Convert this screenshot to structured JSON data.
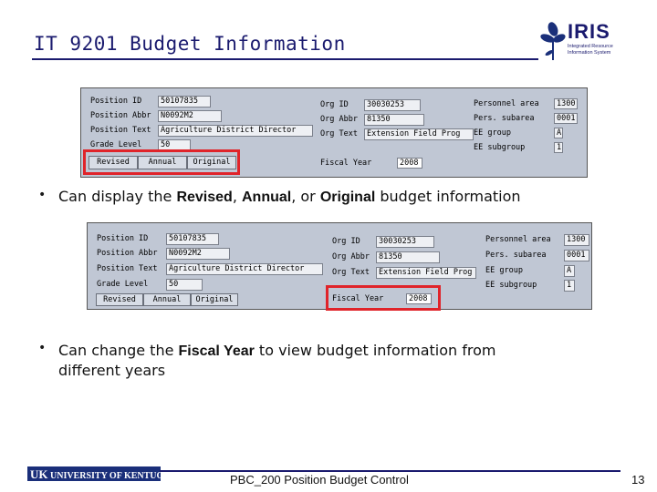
{
  "slide": {
    "title": "IT 9201 Budget Information",
    "logo": {
      "name": "IRIS",
      "subtitle": "Integrated Resource Information System"
    },
    "footer": {
      "org": "UNIVERSITY OF KENTUCKY",
      "uk_mark": "UK",
      "course": "PBC_200 Position Budget Control",
      "page": "13"
    }
  },
  "screen1": {
    "labels": {
      "position_id": "Position ID",
      "position_abbr": "Position Abbr",
      "position_text": "Position Text",
      "grade_level": "Grade Level",
      "org_id": "Org ID",
      "org_abbr": "Org Abbr",
      "org_text": "Org Text",
      "fiscal_year": "Fiscal Year",
      "personnel_area": "Personnel area",
      "pers_subarea": "Pers. subarea",
      "ee_group": "EE group",
      "ee_subgroup": "EE subgroup"
    },
    "values": {
      "position_id": "50107835",
      "position_abbr": "N0092M2",
      "position_text": "Agriculture District Director",
      "grade_level": "50",
      "org_id": "30030253",
      "org_abbr": "81350",
      "org_text": "Extension Field Prog",
      "fiscal_year": "2008",
      "personnel_area": "1300",
      "pers_subarea": "0001",
      "ee_group": "A",
      "ee_subgroup": "1"
    },
    "buttons": {
      "revised": "Revised",
      "annual": "Annual",
      "original": "Original"
    }
  },
  "bullet1": {
    "pre": "Can display the ",
    "b1": "Revised",
    "sep1": ", ",
    "b2": "Annual",
    "sep2": ", or ",
    "b3": "Original",
    "post": " budget information"
  },
  "screen2": {
    "labels": {
      "position_id": "Position ID",
      "position_abbr": "Position Abbr",
      "position_text": "Position Text",
      "grade_level": "Grade Level",
      "org_id": "Org ID",
      "org_abbr": "Org Abbr",
      "org_text": "Org Text",
      "fiscal_year": "Fiscal Year",
      "personnel_area": "Personnel area",
      "pers_subarea": "Pers. subarea",
      "ee_group": "EE group",
      "ee_subgroup": "EE subgroup"
    },
    "values": {
      "position_id": "50107835",
      "position_abbr": "N0092M2",
      "position_text": "Agriculture District Director",
      "grade_level": "50",
      "org_id": "30030253",
      "org_abbr": "81350",
      "org_text": "Extension Field Prog",
      "fiscal_year": "2008",
      "personnel_area": "1300",
      "pers_subarea": "0001",
      "ee_group": "A",
      "ee_subgroup": "1"
    },
    "buttons": {
      "revised": "Revised",
      "annual": "Annual",
      "original": "Original"
    }
  },
  "bullet2": {
    "pre": "Can change the ",
    "b1": "Fiscal Year",
    "post_line1": " to view budget information from",
    "line2": "different years"
  }
}
